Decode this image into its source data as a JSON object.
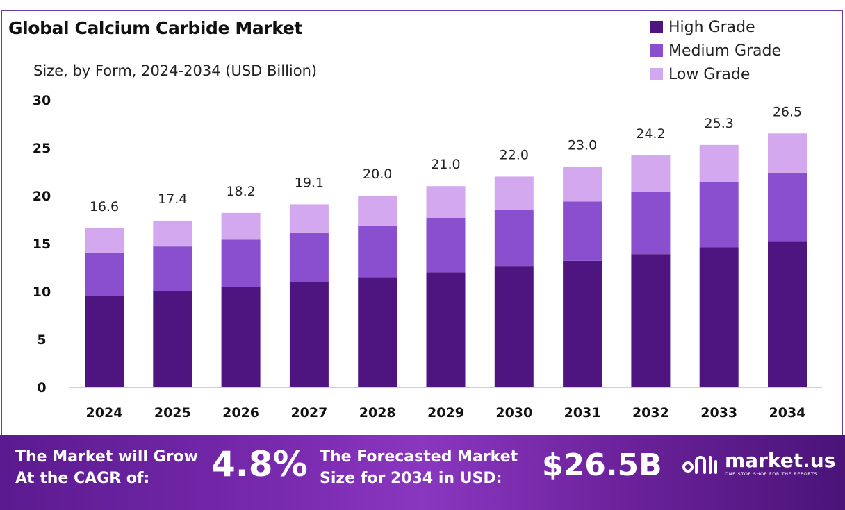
{
  "header": {
    "title": "Global Calcium Carbide Market",
    "subtitle": "Size, by Form, 2024-2034 (USD Billion)"
  },
  "colors": {
    "high": "#4e1580",
    "medium": "#8a4fcf",
    "low": "#d4a8ee",
    "frame": "#6a3aa8",
    "axis": "#cfcfcf"
  },
  "chart_data": {
    "type": "bar",
    "stacked": true,
    "categories": [
      "2024",
      "2025",
      "2026",
      "2027",
      "2028",
      "2029",
      "2030",
      "2031",
      "2032",
      "2033",
      "2034"
    ],
    "series": [
      {
        "name": "High Grade",
        "values": [
          9.5,
          10.0,
          10.5,
          11.0,
          11.5,
          12.0,
          12.6,
          13.2,
          13.9,
          14.6,
          15.2
        ]
      },
      {
        "name": "Medium Grade",
        "values": [
          4.5,
          4.7,
          4.9,
          5.1,
          5.4,
          5.7,
          5.9,
          6.2,
          6.5,
          6.8,
          7.2
        ]
      },
      {
        "name": "Low Grade",
        "values": [
          2.6,
          2.7,
          2.8,
          3.0,
          3.1,
          3.3,
          3.5,
          3.6,
          3.8,
          3.9,
          4.1
        ]
      }
    ],
    "totals": [
      "16.6",
      "17.4",
      "18.2",
      "19.1",
      "20.0",
      "21.0",
      "22.0",
      "23.0",
      "24.2",
      "25.3",
      "26.5"
    ],
    "yticks": [
      "0",
      "5",
      "10",
      "15",
      "20",
      "25",
      "30"
    ],
    "ylim": [
      0,
      30
    ],
    "legend_position": "top-right",
    "grid": false
  },
  "banner": {
    "cagr_label_1": "The Market will Grow",
    "cagr_label_2": "At the CAGR of:",
    "cagr_value": "4.8%",
    "forecast_label_1": "The Forecasted Market",
    "forecast_label_2": "Size for 2034 in USD:",
    "forecast_value": "$26.5B",
    "logo_text": "market.us",
    "logo_tagline": "ONE STOP SHOP FOR THE REPORTS"
  }
}
